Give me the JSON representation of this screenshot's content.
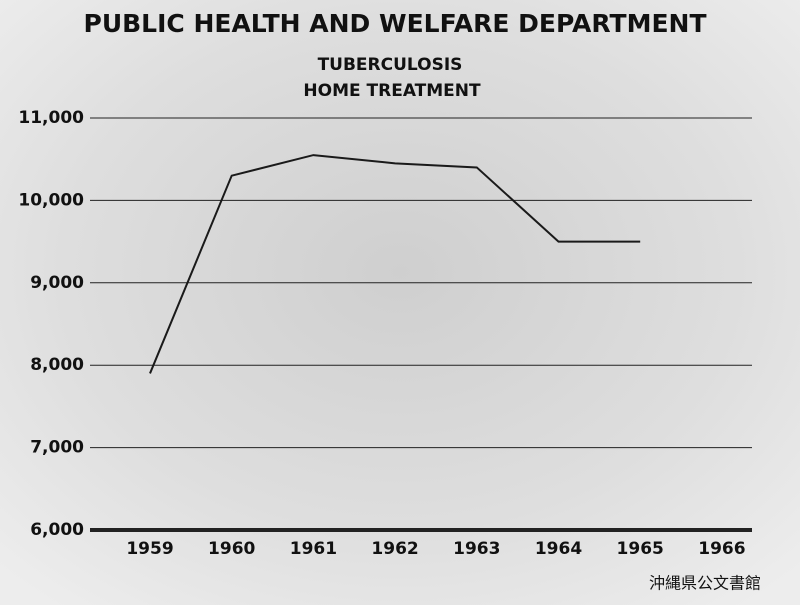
{
  "chart_data": {
    "type": "line",
    "title": "PUBLIC HEALTH AND WELFARE DEPARTMENT",
    "subtitle": [
      "TUBERCULOSIS",
      "HOME TREATMENT"
    ],
    "categories": [
      "1959",
      "1960",
      "1961",
      "1962",
      "1963",
      "1964",
      "1965",
      "1966"
    ],
    "series": [
      {
        "color": "#1a1a1a",
        "values": [
          7900,
          10300,
          10550,
          10450,
          10400,
          9500,
          9500,
          null
        ]
      }
    ],
    "ylim": [
      6000,
      11000
    ],
    "yticks": [
      {
        "value": 6000,
        "label": "6,000"
      },
      {
        "value": 7000,
        "label": "7,000"
      },
      {
        "value": 8000,
        "label": "8,000"
      },
      {
        "value": 9000,
        "label": "9,000"
      },
      {
        "value": 10000,
        "label": "10,000"
      },
      {
        "value": 11000,
        "label": "11,000"
      }
    ],
    "grid": true,
    "watermark": "沖縄県公文書館"
  }
}
